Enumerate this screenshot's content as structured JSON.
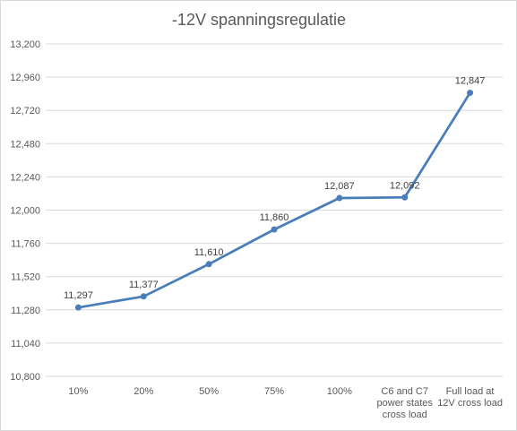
{
  "chart_data": {
    "type": "line",
    "title": "-12V spanningsregulatie",
    "xlabel": "",
    "ylabel": "",
    "categories": [
      [
        "10%"
      ],
      [
        "20%"
      ],
      [
        "50%"
      ],
      [
        "75%"
      ],
      [
        "100%"
      ],
      [
        "C6 and C7",
        "power states",
        "cross load"
      ],
      [
        "Full load at",
        "12V cross load"
      ]
    ],
    "series": [
      {
        "values": [
          11.297,
          11.377,
          11.61,
          11.86,
          12.087,
          12.092,
          12.847
        ],
        "labels": [
          "11,297",
          "11,377",
          "11,610",
          "11,860",
          "12,087",
          "12,092",
          "12,847"
        ]
      }
    ],
    "ylim": [
      10.8,
      13.2
    ],
    "yticks": [
      10.8,
      11.04,
      11.28,
      11.52,
      11.76,
      12.0,
      12.24,
      12.48,
      12.72,
      12.96,
      13.2
    ],
    "ytick_labels": [
      "10,800",
      "11,040",
      "11,280",
      "11,520",
      "11,760",
      "12,000",
      "12,240",
      "12,480",
      "12,720",
      "12,960",
      "13,200"
    ],
    "grid": true,
    "legend": "none",
    "colors": {
      "line": "#4a7ebb",
      "grid": "#d9d9d9",
      "text": "#595959"
    }
  }
}
